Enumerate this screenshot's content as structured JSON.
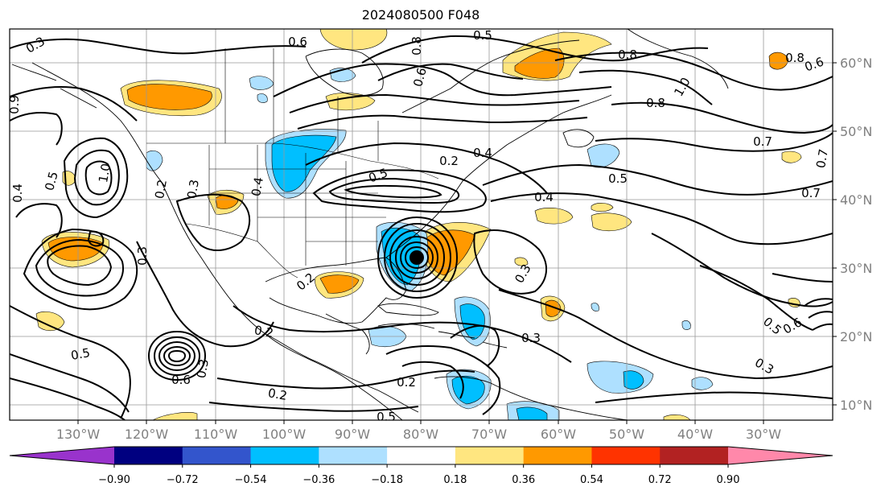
{
  "title": "2024080500 F048",
  "lon_labels": [
    "130°W",
    "120°W",
    "110°W",
    "100°W",
    "90°W",
    "80°W",
    "70°W",
    "60°W",
    "50°W",
    "40°W",
    "30°W"
  ],
  "lat_labels": [
    "60°N",
    "50°N",
    "40°N",
    "30°N",
    "20°N",
    "10°N"
  ],
  "colorbar": {
    "colors": [
      "#9933cc",
      "#000080",
      "#3355cc",
      "#00bfff",
      "#aee0ff",
      "#ffffff",
      "#ffe680",
      "#ff9900",
      "#ff3300",
      "#b22222",
      "#ff88aa"
    ],
    "tick_labels": [
      "−0.90",
      "−0.72",
      "−0.54",
      "−0.36",
      "−0.18",
      "0.18",
      "0.36",
      "0.54",
      "0.72",
      "0.90"
    ]
  },
  "contour_labels": [
    {
      "text": "0.3"
    },
    {
      "text": "0.6"
    },
    {
      "text": "0.8"
    },
    {
      "text": "0.6"
    },
    {
      "text": "0.5"
    },
    {
      "text": "0.8"
    },
    {
      "text": "0.8"
    },
    {
      "text": "1.0"
    },
    {
      "text": "0.8"
    },
    {
      "text": "0.6"
    },
    {
      "text": "0.9"
    },
    {
      "text": "0.2"
    },
    {
      "text": "0.5"
    },
    {
      "text": "0.5"
    },
    {
      "text": "0.7"
    },
    {
      "text": "0.7"
    },
    {
      "text": "0.4"
    },
    {
      "text": "0.5"
    },
    {
      "text": "0.4"
    },
    {
      "text": "0.5"
    },
    {
      "text": "1.0"
    },
    {
      "text": "0.2"
    },
    {
      "text": "0.3"
    },
    {
      "text": "0.4"
    },
    {
      "text": "0.3"
    },
    {
      "text": "0.2"
    },
    {
      "text": "0.3"
    },
    {
      "text": "0.3"
    },
    {
      "text": "0.2"
    },
    {
      "text": "0.5"
    },
    {
      "text": "0.6"
    },
    {
      "text": "0.2"
    },
    {
      "text": "0.2"
    },
    {
      "text": "0.3"
    },
    {
      "text": "0.5"
    },
    {
      "text": "0.6"
    },
    {
      "text": "0.7"
    },
    {
      "text": "0.4"
    },
    {
      "text": "0.3"
    }
  ]
}
